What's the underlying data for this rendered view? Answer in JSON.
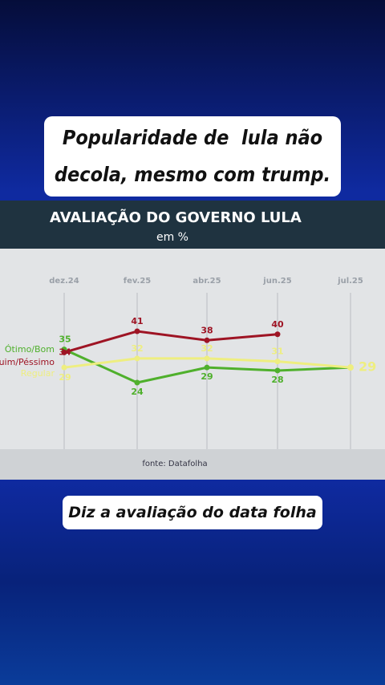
{
  "headline": [
    "Popularidade de  lula não",
    "decola, mesmo com trump."
  ],
  "caption": "Diz a avaliação do data folha",
  "chart_data": {
    "type": "line",
    "title": "AVALIAÇÃO DO GOVERNO LULA",
    "subtitle": "em %",
    "source": "fonte: Datafolha",
    "categories": [
      "dez.24",
      "fev.25",
      "abr.25",
      "jun.25",
      "jul.25"
    ],
    "series": [
      {
        "name": "Ótimo/Bom",
        "color": "#4fb02c",
        "values": [
          35,
          24,
          29,
          28,
          29
        ]
      },
      {
        "name": "Ruim/Péssimo",
        "color": "#9e1424",
        "values": [
          34,
          41,
          38,
          40,
          null
        ]
      },
      {
        "name": "Regular",
        "color": "#eeee80",
        "values": [
          29,
          32,
          32,
          31,
          29
        ]
      }
    ]
  }
}
